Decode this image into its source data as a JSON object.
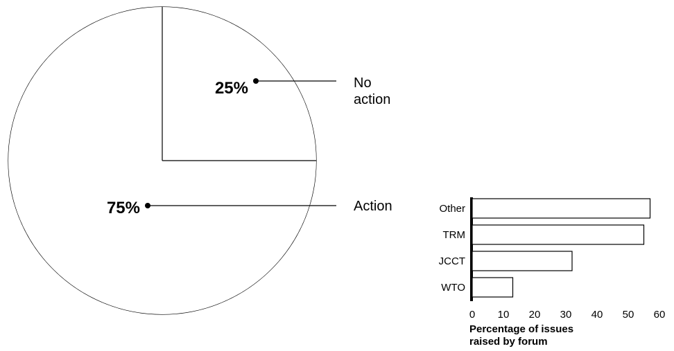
{
  "chart_data": [
    {
      "type": "pie",
      "slices": [
        {
          "label_lines": [
            "No",
            "action"
          ],
          "value": 25,
          "value_label": "25%"
        },
        {
          "label_lines": [
            "Action"
          ],
          "value": 75,
          "value_label": "75%"
        }
      ]
    },
    {
      "type": "bar",
      "orientation": "horizontal",
      "categories": [
        "Other",
        "TRM",
        "JCCT",
        "WTO"
      ],
      "values": [
        57,
        55,
        32,
        13
      ],
      "xlim": [
        0,
        60
      ],
      "xticks": [
        "0",
        "10",
        "20",
        "30",
        "40",
        "50",
        "60"
      ],
      "xlabel_lines": [
        "Percentage of issues",
        "raised by forum"
      ],
      "grid": false,
      "legend": "none"
    }
  ]
}
